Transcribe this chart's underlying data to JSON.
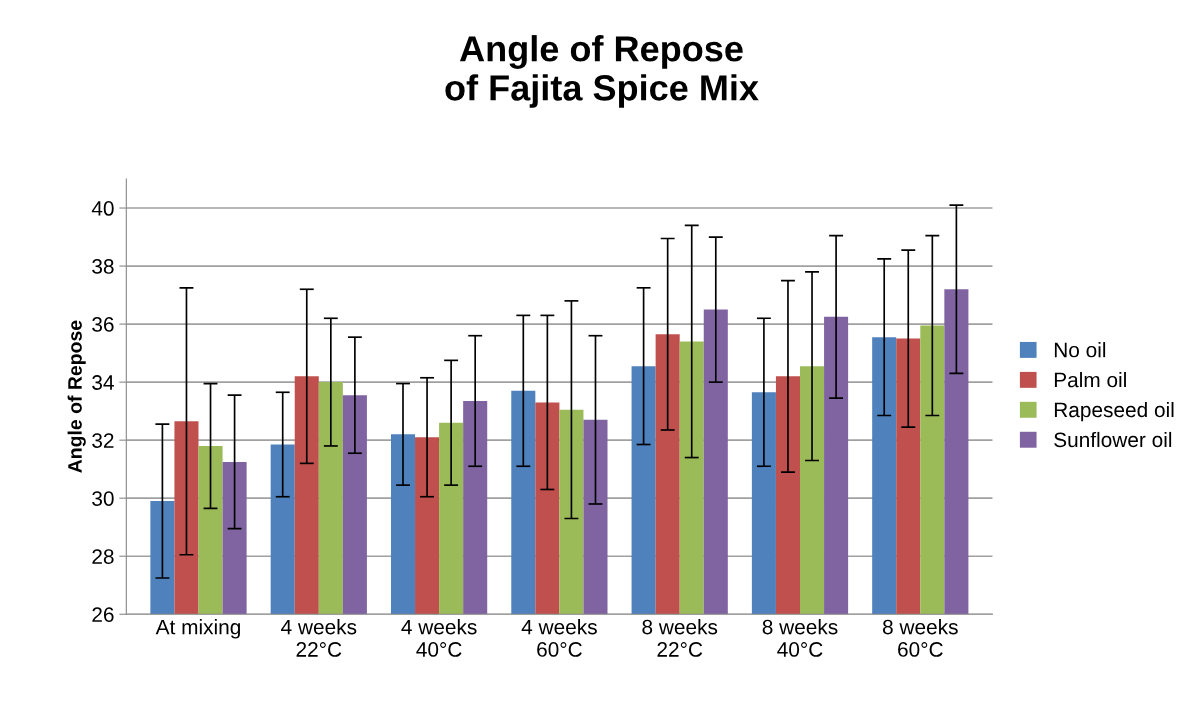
{
  "chart_data": {
    "type": "bar",
    "title": "Angle of Repose\nof Fajita Spice Mix",
    "ylabel": "Angle of Repose",
    "categories": [
      "At mixing",
      "4 weeks\n22°C",
      "4 weeks\n40°C",
      "4 weeks\n60°C",
      "8 weeks\n22°C",
      "8 weeks\n40°C",
      "8 weeks\n60°C"
    ],
    "series": [
      {
        "name": "No oil",
        "color": "#4f81bd",
        "values": [
          29.9,
          31.85,
          32.2,
          33.7,
          34.55,
          33.65,
          35.55
        ],
        "errors": [
          2.65,
          1.8,
          1.75,
          2.6,
          2.7,
          2.55,
          2.7
        ]
      },
      {
        "name": "Palm oil",
        "color": "#c0504d",
        "values": [
          32.65,
          34.2,
          32.1,
          33.3,
          35.65,
          34.2,
          35.5
        ],
        "errors": [
          4.6,
          3.0,
          2.05,
          3.0,
          3.3,
          3.3,
          3.05
        ]
      },
      {
        "name": "Rapeseed oil",
        "color": "#9bbb59",
        "values": [
          31.8,
          34.0,
          32.6,
          33.05,
          35.4,
          34.55,
          35.95
        ],
        "errors": [
          2.15,
          2.2,
          2.15,
          3.75,
          4.0,
          3.25,
          3.1
        ]
      },
      {
        "name": "Sunflower oil",
        "color": "#8064a2",
        "values": [
          31.25,
          33.55,
          33.35,
          32.7,
          36.5,
          36.25,
          37.2
        ],
        "errors": [
          2.3,
          2.0,
          2.25,
          2.9,
          2.5,
          2.8,
          2.9
        ]
      }
    ],
    "ylim": [
      26,
      41
    ],
    "yticks": [
      26,
      28,
      30,
      32,
      34,
      36,
      38,
      40
    ],
    "grid": "y",
    "legend": "right"
  }
}
